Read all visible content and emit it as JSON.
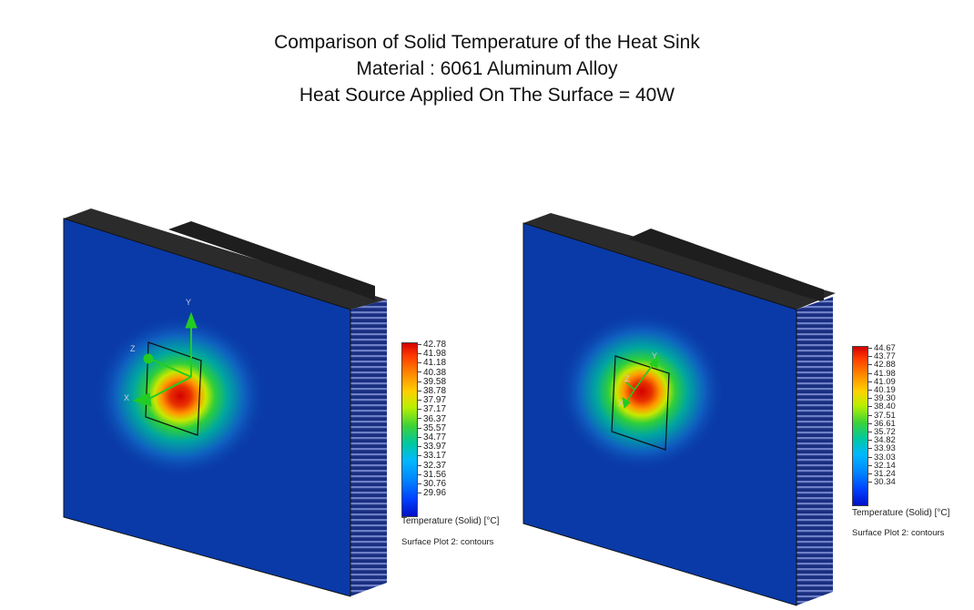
{
  "title": {
    "line1": "Comparison of Solid Temperature of the Heat Sink",
    "line2": "Material : 6061 Aluminum Alloy",
    "line3": "Heat Source Applied On The Surface = 40W"
  },
  "left_plot": {
    "legend_values": [
      "42.78",
      "41.98",
      "41.18",
      "40.38",
      "39.58",
      "38.78",
      "37.97",
      "37.17",
      "36.37",
      "35.57",
      "34.77",
      "33.97",
      "33.17",
      "32.37",
      "31.56",
      "30.76",
      "29.96"
    ],
    "legend_title": "Temperature (Solid) [°C]",
    "plot_name": "Surface Plot 2: contours",
    "axis_labels": {
      "y": "Y",
      "z": "Z",
      "x": "X"
    }
  },
  "right_plot": {
    "legend_values": [
      "44.67",
      "43.77",
      "42.88",
      "41.98",
      "41.09",
      "40.19",
      "39.30",
      "38.40",
      "37.51",
      "36.61",
      "35.72",
      "34.82",
      "33.93",
      "33.03",
      "32.14",
      "31.24",
      "30.34"
    ],
    "legend_title": "Temperature (Solid) [°C]",
    "plot_name": "Surface Plot 2: contours",
    "axis_labels": {
      "y": "Y",
      "z": "Z",
      "x": "X"
    }
  },
  "colors": {
    "hot": "#d40000",
    "cold": "#0a2fa0",
    "heatsink_body": "#2a2a2a",
    "axis_triad": "#22cc22"
  }
}
